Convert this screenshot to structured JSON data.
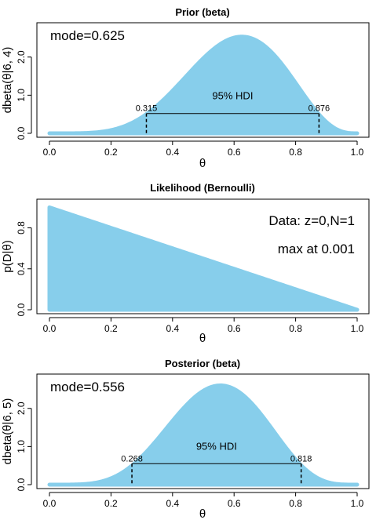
{
  "chart_data": [
    {
      "type": "area",
      "title": "Prior (beta)",
      "xlabel": "θ",
      "ylabel": "dbeta(θ|6, 4)",
      "distribution": {
        "family": "beta",
        "a": 6,
        "b": 4
      },
      "xlim": [
        0,
        1
      ],
      "ylim": [
        0,
        2.9
      ],
      "xticks": [
        "0.0",
        "0.2",
        "0.4",
        "0.6",
        "0.8",
        "1.0"
      ],
      "yticks": [
        "0.0",
        "1.0",
        "2.0"
      ],
      "mode_text": "mode=0.625",
      "hdi": {
        "label": "95% HDI",
        "low": 0.315,
        "high": 0.876,
        "low_text": "0.315",
        "high_text": "0.876",
        "height": 0.52
      },
      "fill_color": "#87ceeb"
    },
    {
      "type": "area",
      "title": "Likelihood (Bernoulli)",
      "xlabel": "θ",
      "ylabel": "p(D|θ)",
      "distribution": {
        "family": "bernoulli_likelihood",
        "z": 0,
        "N": 1
      },
      "xlim": [
        0,
        1
      ],
      "ylim": [
        0,
        1.08
      ],
      "xticks": [
        "0.0",
        "0.2",
        "0.4",
        "0.6",
        "0.8",
        "1.0"
      ],
      "yticks": [
        "0.0",
        "0.4",
        "0.8"
      ],
      "annotations": [
        "Data: z=0,N=1",
        "max at 0.001"
      ],
      "fill_color": "#87ceeb"
    },
    {
      "type": "area",
      "title": "Posterior (beta)",
      "xlabel": "θ",
      "ylabel": "dbeta(θ|6, 5)",
      "distribution": {
        "family": "beta",
        "a": 6,
        "b": 5
      },
      "xlim": [
        0,
        1
      ],
      "ylim": [
        0,
        2.9
      ],
      "xticks": [
        "0.0",
        "0.2",
        "0.4",
        "0.6",
        "0.8",
        "1.0"
      ],
      "yticks": [
        "0.0",
        "1.0",
        "2.0"
      ],
      "mode_text": "mode=0.556",
      "hdi": {
        "label": "95% HDI",
        "low": 0.268,
        "high": 0.818,
        "low_text": "0.268",
        "high_text": "0.818",
        "height": 0.55
      },
      "fill_color": "#87ceeb"
    }
  ]
}
